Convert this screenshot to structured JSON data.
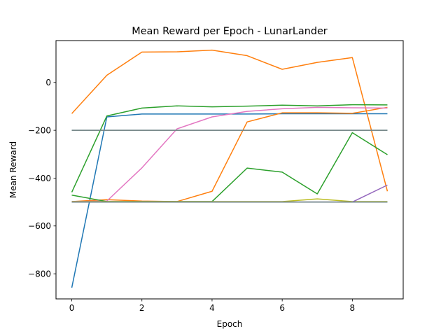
{
  "chart_data": {
    "type": "line",
    "title": "Mean Reward per Epoch - LunarLander",
    "xlabel": "Epoch",
    "ylabel": "Mean Reward",
    "xlim": [
      -0.45,
      9.45
    ],
    "ylim": [
      -905,
      175
    ],
    "xticks": [
      0,
      2,
      4,
      6,
      8
    ],
    "yticks": [
      -800,
      -600,
      -400,
      -200,
      0
    ],
    "grid": false,
    "legend": false,
    "x": [
      0,
      1,
      2,
      3,
      4,
      5,
      6,
      7,
      8,
      9
    ],
    "series": [
      {
        "color": "#1f77b4",
        "values": [
          -858,
          -144,
          -132,
          -132,
          -132,
          -132,
          -131,
          -131,
          -131,
          -131
        ]
      },
      {
        "color": "#ff7f0e",
        "values": [
          -130,
          30,
          127,
          128,
          135,
          112,
          55,
          84,
          104,
          -455
        ]
      },
      {
        "color": "#2ca02c",
        "values": [
          -459,
          -140,
          -107,
          -98,
          -102,
          -99,
          -95,
          -98,
          -93,
          -94
        ]
      },
      {
        "color": "#ff7f0e",
        "values": [
          -498,
          -490,
          -496,
          -498,
          -455,
          -165,
          -127,
          -127,
          -129,
          -104
        ]
      },
      {
        "color": "#e377c2",
        "values": [
          -498,
          -496,
          -357,
          -194,
          -144,
          -121,
          -110,
          -104,
          -106,
          -107
        ]
      },
      {
        "color": "#2ca02c",
        "values": [
          -471,
          -498,
          -498,
          -498,
          -498,
          -358,
          -375,
          -466,
          -210,
          -302
        ]
      },
      {
        "color": "#bcbd22",
        "values": [
          -498,
          -498,
          -498,
          -498,
          -498,
          -498,
          -498,
          -487,
          -498,
          -498
        ]
      },
      {
        "color": "#9467bd",
        "values": [
          -500,
          -500,
          -500,
          -500,
          -500,
          -500,
          -500,
          -500,
          -500,
          -429
        ]
      },
      {
        "color": "#17becf",
        "values": [
          -200,
          -200,
          -200,
          -200,
          -200,
          -200,
          -200,
          -200,
          -200,
          -200
        ]
      },
      {
        "color": "#7f7f7f",
        "values": [
          -200,
          -200,
          -200,
          -200,
          -200,
          -200,
          -200,
          -200,
          -200,
          -200
        ]
      },
      {
        "color": "#17becf",
        "values": [
          -500,
          -500,
          -500,
          -500,
          -500,
          -500,
          -500,
          -500,
          -500,
          -500
        ]
      },
      {
        "color": "#7f7f7f",
        "values": [
          -500,
          -500,
          -500,
          -500,
          -500,
          -500,
          -500,
          -500,
          -500,
          -500
        ]
      }
    ]
  }
}
